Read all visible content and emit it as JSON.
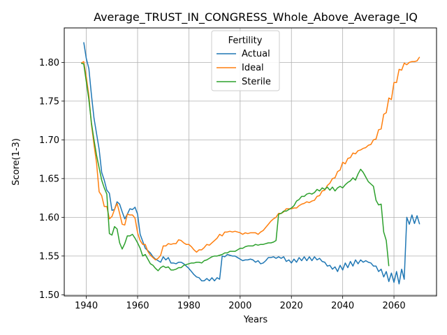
{
  "chart_data": {
    "type": "line",
    "title": "Average_TRUST_IN_CONGRESS_Whole_Above_Average_IQ",
    "xlabel": "Years",
    "ylabel": "Score(1-3)",
    "xlim": [
      1931.4,
      2076.6
    ],
    "ylim": [
      1.4985,
      1.8445
    ],
    "xticks": [
      1940,
      1960,
      1980,
      2000,
      2020,
      2040,
      2060
    ],
    "yticks": [
      1.5,
      1.55,
      1.6,
      1.65,
      1.7,
      1.75,
      1.8
    ],
    "grid": true,
    "legend": {
      "title": "Fertility",
      "placement": "top-center"
    },
    "series": [
      {
        "name": "Actual",
        "color": "#1f77b4",
        "x": [
          1939,
          1940,
          1941,
          1942,
          1943,
          1944,
          1945,
          1946,
          1947,
          1948,
          1949,
          1950,
          1951,
          1952,
          1953,
          1954,
          1955,
          1956,
          1957,
          1958,
          1959,
          1960,
          1961,
          1962,
          1963,
          1964,
          1965,
          1966,
          1967,
          1968,
          1969,
          1970,
          1971,
          1972,
          1973,
          1974,
          1975,
          1976,
          1977,
          1978,
          1979,
          1980,
          1981,
          1982,
          1983,
          1984,
          1985,
          1986,
          1987,
          1988,
          1989,
          1990,
          1991,
          1992,
          1993,
          1994,
          1995,
          1996,
          1997,
          1998,
          1999,
          2000,
          2001,
          2002,
          2003,
          2004,
          2005,
          2006,
          2007,
          2008,
          2009,
          2010,
          2011,
          2012,
          2013,
          2014,
          2015,
          2016,
          2017,
          2018,
          2019,
          2020,
          2021,
          2022,
          2023,
          2024,
          2025,
          2026,
          2027,
          2028,
          2029,
          2030,
          2031,
          2032,
          2033,
          2034,
          2035,
          2036,
          2037,
          2038,
          2039,
          2040,
          2041,
          2042,
          2043,
          2044,
          2045,
          2046,
          2047,
          2048,
          2049,
          2050,
          2051,
          2052,
          2053,
          2054,
          2055,
          2056,
          2057,
          2058,
          2059,
          2060,
          2061,
          2062,
          2063,
          2064,
          2065,
          2066,
          2067,
          2068,
          2069,
          2070
        ],
        "y": [
          1.826,
          1.805,
          1.792,
          1.758,
          1.728,
          1.708,
          1.688,
          1.658,
          1.648,
          1.635,
          1.631,
          1.609,
          1.61,
          1.62,
          1.617,
          1.607,
          1.598,
          1.604,
          1.611,
          1.61,
          1.613,
          1.604,
          1.578,
          1.569,
          1.56,
          1.557,
          1.554,
          1.549,
          1.546,
          1.544,
          1.542,
          1.549,
          1.545,
          1.548,
          1.541,
          1.541,
          1.54,
          1.542,
          1.542,
          1.54,
          1.537,
          1.534,
          1.53,
          1.526,
          1.523,
          1.522,
          1.518,
          1.518,
          1.521,
          1.518,
          1.522,
          1.518,
          1.522,
          1.52,
          1.55,
          1.549,
          1.552,
          1.551,
          1.55,
          1.55,
          1.548,
          1.546,
          1.544,
          1.545,
          1.545,
          1.546,
          1.545,
          1.542,
          1.544,
          1.54,
          1.541,
          1.544,
          1.548,
          1.548,
          1.549,
          1.547,
          1.549,
          1.547,
          1.549,
          1.543,
          1.545,
          1.541,
          1.546,
          1.542,
          1.548,
          1.544,
          1.549,
          1.544,
          1.549,
          1.544,
          1.549,
          1.545,
          1.547,
          1.543,
          1.542,
          1.537,
          1.538,
          1.533,
          1.536,
          1.53,
          1.538,
          1.532,
          1.541,
          1.535,
          1.543,
          1.537,
          1.545,
          1.54,
          1.545,
          1.542,
          1.544,
          1.542,
          1.541,
          1.537,
          1.537,
          1.53,
          1.533,
          1.523,
          1.53,
          1.517,
          1.528,
          1.516,
          1.53,
          1.514,
          1.533,
          1.52,
          1.6,
          1.591,
          1.603,
          1.592,
          1.602,
          1.591
        ],
        "values_note": ""
      },
      {
        "name": "Ideal",
        "color": "#ff7f0e",
        "x": [
          1938,
          1939,
          1940,
          1941,
          1942,
          1943,
          1944,
          1945,
          1946,
          1947,
          1948,
          1949,
          1950,
          1951,
          1952,
          1953,
          1954,
          1955,
          1956,
          1957,
          1958,
          1959,
          1960,
          1961,
          1962,
          1963,
          1964,
          1965,
          1966,
          1967,
          1968,
          1969,
          1970,
          1971,
          1972,
          1973,
          1974,
          1975,
          1976,
          1977,
          1978,
          1979,
          1980,
          1981,
          1982,
          1983,
          1984,
          1985,
          1986,
          1987,
          1988,
          1989,
          1990,
          1991,
          1992,
          1993,
          1994,
          1995,
          1996,
          1997,
          1998,
          1999,
          2000,
          2001,
          2002,
          2003,
          2004,
          2005,
          2006,
          2007,
          2008,
          2009,
          2010,
          2011,
          2012,
          2013,
          2014,
          2015,
          2016,
          2017,
          2018,
          2019,
          2020,
          2021,
          2022,
          2023,
          2024,
          2025,
          2026,
          2027,
          2028,
          2029,
          2030,
          2031,
          2032,
          2033,
          2034,
          2035,
          2036,
          2037,
          2038,
          2039,
          2040,
          2041,
          2042,
          2043,
          2044,
          2045,
          2046,
          2047,
          2048,
          2049,
          2050,
          2051,
          2052,
          2053,
          2054,
          2055,
          2056,
          2057,
          2058,
          2059,
          2060,
          2061,
          2062,
          2063,
          2064,
          2065,
          2066,
          2067,
          2068,
          2069,
          2070
        ],
        "y": [
          1.799,
          1.801,
          1.781,
          1.757,
          1.72,
          1.694,
          1.67,
          1.633,
          1.628,
          1.614,
          1.614,
          1.598,
          1.601,
          1.61,
          1.618,
          1.605,
          1.591,
          1.59,
          1.604,
          1.603,
          1.603,
          1.599,
          1.58,
          1.57,
          1.565,
          1.565,
          1.556,
          1.551,
          1.548,
          1.545,
          1.547,
          1.551,
          1.563,
          1.563,
          1.566,
          1.565,
          1.566,
          1.566,
          1.571,
          1.57,
          1.567,
          1.565,
          1.565,
          1.562,
          1.558,
          1.555,
          1.558,
          1.558,
          1.561,
          1.565,
          1.564,
          1.567,
          1.57,
          1.573,
          1.578,
          1.576,
          1.581,
          1.581,
          1.582,
          1.581,
          1.582,
          1.581,
          1.58,
          1.578,
          1.58,
          1.579,
          1.58,
          1.58,
          1.58,
          1.578,
          1.581,
          1.583,
          1.587,
          1.591,
          1.595,
          1.598,
          1.6,
          1.605,
          1.605,
          1.607,
          1.611,
          1.611,
          1.611,
          1.612,
          1.612,
          1.615,
          1.617,
          1.618,
          1.62,
          1.619,
          1.621,
          1.622,
          1.627,
          1.628,
          1.634,
          1.635,
          1.641,
          1.644,
          1.65,
          1.651,
          1.659,
          1.661,
          1.671,
          1.669,
          1.676,
          1.677,
          1.683,
          1.682,
          1.686,
          1.687,
          1.689,
          1.69,
          1.693,
          1.694,
          1.7,
          1.701,
          1.713,
          1.714,
          1.733,
          1.735,
          1.754,
          1.752,
          1.774,
          1.774,
          1.791,
          1.79,
          1.799,
          1.797,
          1.8,
          1.801,
          1.801,
          1.802,
          1.807
        ],
        "values_note": ""
      },
      {
        "name": "Sterile",
        "color": "#2ca02c",
        "x": [
          1938,
          1939,
          1940,
          1941,
          1942,
          1943,
          1944,
          1945,
          1946,
          1947,
          1948,
          1949,
          1950,
          1951,
          1952,
          1953,
          1954,
          1955,
          1956,
          1957,
          1958,
          1959,
          1960,
          1961,
          1962,
          1963,
          1964,
          1965,
          1966,
          1967,
          1968,
          1969,
          1970,
          1971,
          1972,
          1973,
          1974,
          1975,
          1976,
          1977,
          1978,
          1979,
          1980,
          1981,
          1982,
          1983,
          1984,
          1985,
          1986,
          1987,
          1988,
          1989,
          1990,
          1991,
          1992,
          1993,
          1994,
          1995,
          1996,
          1997,
          1998,
          1999,
          2000,
          2001,
          2002,
          2003,
          2004,
          2005,
          2006,
          2007,
          2008,
          2009,
          2010,
          2011,
          2012,
          2013,
          2014,
          2015,
          2016,
          2017,
          2018,
          2019,
          2020,
          2021,
          2022,
          2023,
          2024,
          2025,
          2026,
          2027,
          2028,
          2029,
          2030,
          2031,
          2032,
          2033,
          2034,
          2035,
          2036,
          2037,
          2038,
          2039,
          2040,
          2041,
          2042,
          2043,
          2044,
          2045,
          2046,
          2047,
          2048,
          2049,
          2050,
          2051,
          2052,
          2053,
          2054,
          2055,
          2056,
          2057,
          2058
        ],
        "y": [
          1.799,
          1.798,
          1.775,
          1.752,
          1.722,
          1.7,
          1.68,
          1.664,
          1.648,
          1.638,
          1.63,
          1.579,
          1.577,
          1.588,
          1.585,
          1.567,
          1.559,
          1.566,
          1.576,
          1.576,
          1.578,
          1.573,
          1.567,
          1.56,
          1.55,
          1.552,
          1.546,
          1.54,
          1.538,
          1.534,
          1.531,
          1.535,
          1.537,
          1.535,
          1.536,
          1.532,
          1.532,
          1.533,
          1.535,
          1.535,
          1.538,
          1.539,
          1.54,
          1.541,
          1.541,
          1.542,
          1.542,
          1.541,
          1.544,
          1.545,
          1.547,
          1.549,
          1.55,
          1.55,
          1.551,
          1.552,
          1.554,
          1.554,
          1.556,
          1.556,
          1.556,
          1.558,
          1.56,
          1.56,
          1.562,
          1.563,
          1.563,
          1.563,
          1.565,
          1.564,
          1.565,
          1.565,
          1.566,
          1.567,
          1.567,
          1.568,
          1.57,
          1.604,
          1.605,
          1.608,
          1.608,
          1.61,
          1.612,
          1.615,
          1.621,
          1.623,
          1.627,
          1.627,
          1.63,
          1.631,
          1.63,
          1.632,
          1.636,
          1.634,
          1.638,
          1.636,
          1.639,
          1.635,
          1.639,
          1.634,
          1.638,
          1.64,
          1.638,
          1.642,
          1.645,
          1.647,
          1.651,
          1.648,
          1.656,
          1.662,
          1.658,
          1.652,
          1.646,
          1.643,
          1.64,
          1.622,
          1.616,
          1.617,
          1.581,
          1.57,
          1.537
        ]
      }
    ]
  }
}
